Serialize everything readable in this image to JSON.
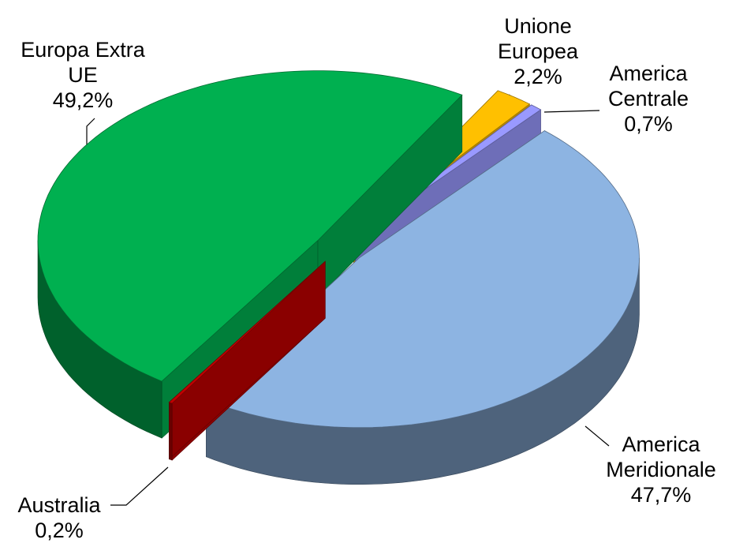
{
  "chart_data": {
    "type": "pie",
    "categories": [
      "Unione Europea",
      "America Centrale",
      "America Meridionale",
      "Australia",
      "Europa Extra UE"
    ],
    "values": [
      2.2,
      0.7,
      47.7,
      0.2,
      49.2
    ],
    "value_labels": [
      "2,2%",
      "0,7%",
      "47,7%",
      "0,2%",
      "49,2%"
    ],
    "colors": [
      "#ffc000",
      "#9999ff",
      "#8db4e2",
      "#c00000",
      "#00b050"
    ]
  }
}
